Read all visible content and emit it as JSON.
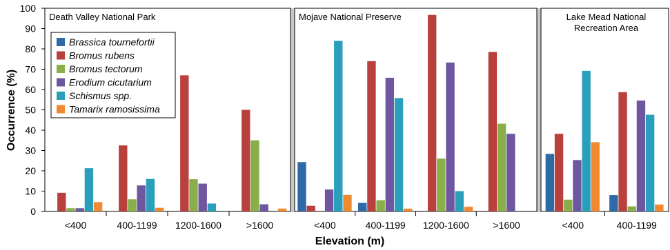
{
  "chart_data": {
    "type": "bar",
    "ylabel": "Occurrence (%)",
    "xlabel": "Elevation (m)",
    "ylim": [
      0,
      100
    ],
    "yticks": [
      0,
      10,
      20,
      30,
      40,
      50,
      60,
      70,
      80,
      90,
      100
    ],
    "legend_position": "top-left of first panel",
    "series_names": [
      "Brassica tournefortii",
      "Bromus rubens",
      "Bromus tectorum",
      "Erodium cicutarium",
      "Schismus spp.",
      "Tamarix ramosissima"
    ],
    "colors": [
      "#2e6aa8",
      "#b8413e",
      "#8aae4a",
      "#6e57a0",
      "#2a9fbc",
      "#ef8a33"
    ],
    "panels": [
      {
        "title": "Death Valley National Park",
        "categories": [
          "<400",
          "400-1199",
          "1200-1600",
          ">1600"
        ],
        "series": [
          {
            "name": "Brassica tournefortii",
            "values": [
              0,
              0,
              0,
              0
            ]
          },
          {
            "name": "Bromus rubens",
            "values": [
              9.2,
              32.5,
              67,
              50
            ]
          },
          {
            "name": "Bromus tectorum",
            "values": [
              1.6,
              6,
              15.9,
              35
            ]
          },
          {
            "name": "Erodium cicutarium",
            "values": [
              1.6,
              12.8,
              13.7,
              3.5
            ]
          },
          {
            "name": "Schismus spp.",
            "values": [
              21.3,
              16,
              3.9,
              0
            ]
          },
          {
            "name": "Tamarix ramosissima",
            "values": [
              4.6,
              1.8,
              0,
              1.4
            ]
          }
        ]
      },
      {
        "title": "Mojave National Preserve",
        "categories": [
          "<400",
          "400-1199",
          "1200-1600",
          ">1600"
        ],
        "series": [
          {
            "name": "Brassica tournefortii",
            "values": [
              24.3,
              4.2,
              0,
              0
            ]
          },
          {
            "name": "Bromus rubens",
            "values": [
              2.8,
              74,
              96.7,
              78.5
            ]
          },
          {
            "name": "Bromus tectorum",
            "values": [
              0,
              5.5,
              26,
              43.2
            ]
          },
          {
            "name": "Erodium cicutarium",
            "values": [
              10.8,
              65.8,
              73.3,
              38.2
            ]
          },
          {
            "name": "Schismus spp.",
            "values": [
              84,
              55.8,
              10,
              0
            ]
          },
          {
            "name": "Tamarix ramosissima",
            "values": [
              8.2,
              1.4,
              2.3,
              0
            ]
          }
        ]
      },
      {
        "title": "Lake Mead National Recreation Area",
        "title_lines": [
          "Lake Mead National",
          "Recreation Area"
        ],
        "categories": [
          "<400",
          "400-1199"
        ],
        "series": [
          {
            "name": "Brassica tournefortii",
            "values": [
              28.3,
              8.1
            ]
          },
          {
            "name": "Bromus rubens",
            "values": [
              38.2,
              58.7
            ]
          },
          {
            "name": "Bromus tectorum",
            "values": [
              5.8,
              2.5
            ]
          },
          {
            "name": "Erodium cicutarium",
            "values": [
              25.3,
              54.6
            ]
          },
          {
            "name": "Schismus spp.",
            "values": [
              69.2,
              47.6
            ]
          },
          {
            "name": "Tamarix ramosissima",
            "values": [
              34.1,
              3.4
            ]
          }
        ]
      }
    ]
  }
}
